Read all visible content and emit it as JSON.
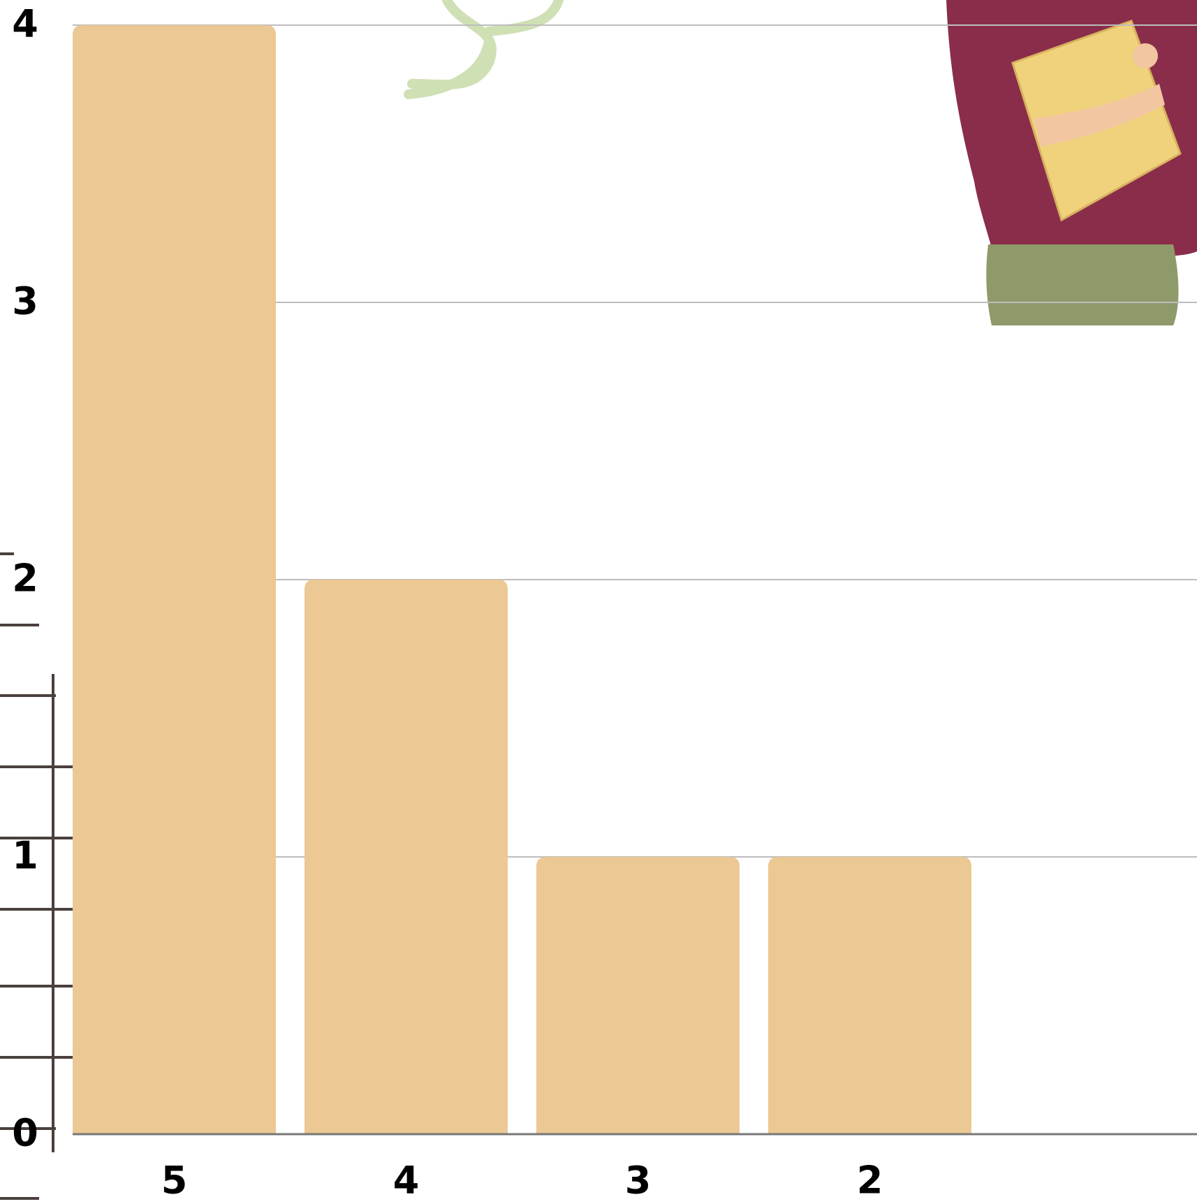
{
  "chart_data": {
    "type": "bar",
    "categories": [
      "5",
      "4",
      "3",
      "2"
    ],
    "values": [
      4,
      2,
      1,
      1
    ],
    "color": "#ebc894",
    "ylim": [
      0,
      4
    ],
    "yticks": [
      0,
      1,
      2,
      3,
      4
    ],
    "grid": true
  }
}
